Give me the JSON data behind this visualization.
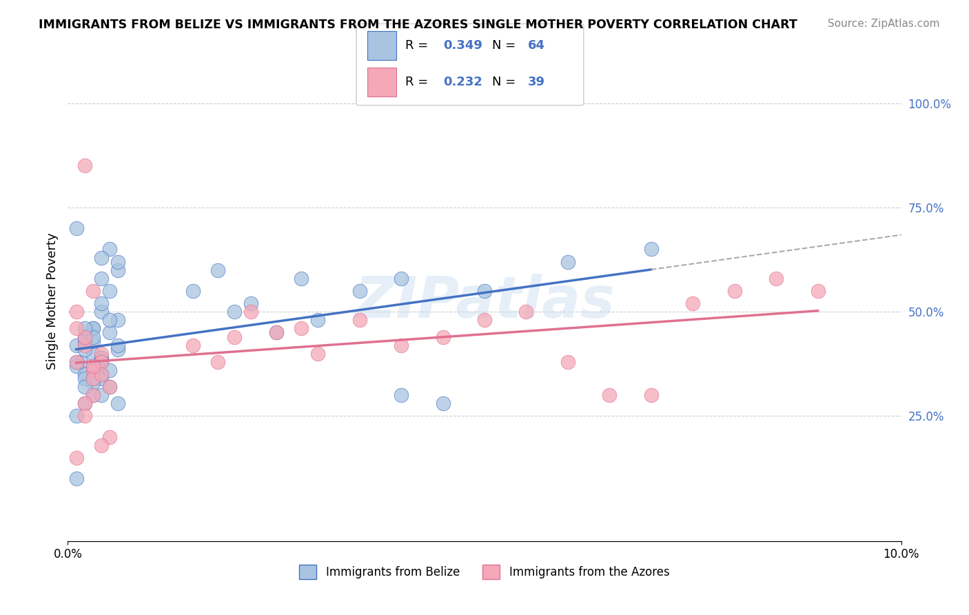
{
  "title": "IMMIGRANTS FROM BELIZE VS IMMIGRANTS FROM THE AZORES SINGLE MOTHER POVERTY CORRELATION CHART",
  "source": "Source: ZipAtlas.com",
  "ylabel": "Single Mother Poverty",
  "legend_belize": "Immigrants from Belize",
  "legend_azores": "Immigrants from the Azores",
  "r_belize": 0.349,
  "n_belize": 64,
  "r_azores": 0.232,
  "n_azores": 39,
  "xlim": [
    0.0,
    0.1
  ],
  "ylim": [
    -0.05,
    1.1
  ],
  "ytick_labels": [
    "25.0%",
    "50.0%",
    "75.0%",
    "100.0%"
  ],
  "yticks": [
    0.25,
    0.5,
    0.75,
    1.0
  ],
  "color_belize": "#a8c4e0",
  "color_azores": "#f4a8b8",
  "line_color_belize": "#4472c4",
  "line_color_azores": "#e07090",
  "belize_x": [
    0.0015,
    0.003,
    0.001,
    0.004,
    0.003,
    0.004,
    0.006,
    0.002,
    0.001,
    0.003,
    0.004,
    0.005,
    0.002,
    0.003,
    0.006,
    0.004,
    0.005,
    0.003,
    0.002,
    0.004,
    0.001,
    0.002,
    0.003,
    0.005,
    0.004,
    0.006,
    0.003,
    0.002,
    0.001,
    0.004,
    0.005,
    0.003,
    0.002,
    0.006,
    0.004,
    0.003,
    0.002,
    0.001,
    0.005,
    0.004,
    0.006,
    0.003,
    0.002,
    0.004,
    0.005,
    0.003,
    0.002,
    0.001,
    0.004,
    0.006,
    0.02,
    0.025,
    0.015,
    0.03,
    0.022,
    0.018,
    0.028,
    0.035,
    0.04,
    0.05,
    0.06,
    0.07,
    0.04,
    0.045
  ],
  "belize_y": [
    0.38,
    0.4,
    0.42,
    0.35,
    0.37,
    0.39,
    0.41,
    0.43,
    0.38,
    0.36,
    0.34,
    0.32,
    0.44,
    0.46,
    0.48,
    0.5,
    0.45,
    0.43,
    0.41,
    0.39,
    0.37,
    0.35,
    0.33,
    0.55,
    0.58,
    0.6,
    0.3,
    0.28,
    0.25,
    0.52,
    0.48,
    0.46,
    0.44,
    0.62,
    0.38,
    0.36,
    0.34,
    0.7,
    0.65,
    0.63,
    0.42,
    0.44,
    0.46,
    0.38,
    0.36,
    0.34,
    0.32,
    0.1,
    0.3,
    0.28,
    0.5,
    0.45,
    0.55,
    0.48,
    0.52,
    0.6,
    0.58,
    0.55,
    0.58,
    0.55,
    0.62,
    0.65,
    0.3,
    0.28
  ],
  "azores_x": [
    0.001,
    0.002,
    0.003,
    0.004,
    0.002,
    0.003,
    0.001,
    0.004,
    0.005,
    0.003,
    0.002,
    0.001,
    0.004,
    0.003,
    0.002,
    0.005,
    0.003,
    0.004,
    0.002,
    0.001,
    0.015,
    0.02,
    0.025,
    0.03,
    0.035,
    0.028,
    0.022,
    0.018,
    0.04,
    0.045,
    0.05,
    0.055,
    0.06,
    0.065,
    0.07,
    0.075,
    0.08,
    0.085,
    0.09
  ],
  "azores_y": [
    0.38,
    0.42,
    0.36,
    0.4,
    0.44,
    0.34,
    0.46,
    0.38,
    0.32,
    0.3,
    0.28,
    0.5,
    0.35,
    0.37,
    0.25,
    0.2,
    0.55,
    0.18,
    0.85,
    0.15,
    0.42,
    0.44,
    0.45,
    0.4,
    0.48,
    0.46,
    0.5,
    0.38,
    0.42,
    0.44,
    0.48,
    0.5,
    0.38,
    0.3,
    0.3,
    0.52,
    0.55,
    0.58,
    0.55
  ]
}
